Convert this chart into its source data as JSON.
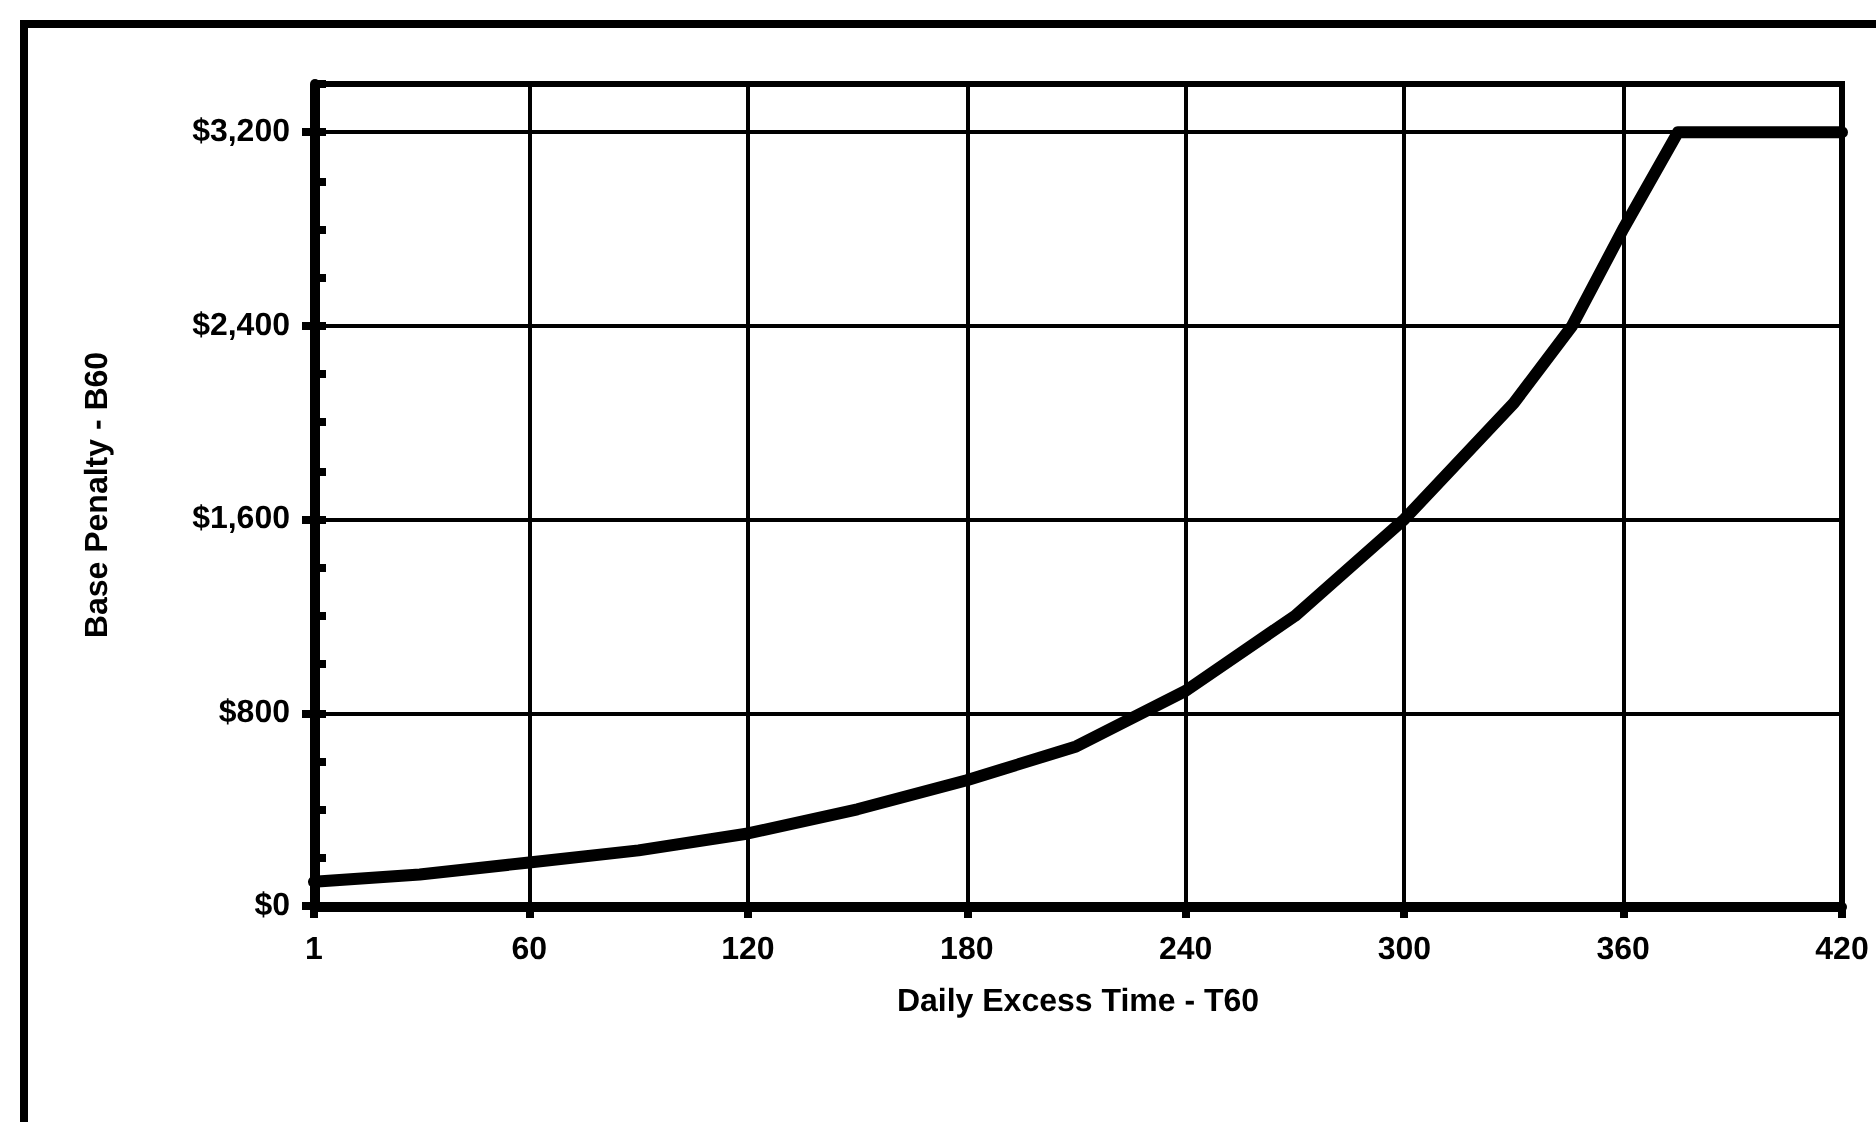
{
  "chart_data": {
    "type": "line",
    "xlabel": "Daily Excess Time - T60",
    "ylabel": "Base Penalty - B60",
    "x": [
      1,
      30,
      60,
      90,
      120,
      150,
      180,
      210,
      240,
      270,
      300,
      330,
      346,
      360,
      375,
      420
    ],
    "series": [
      {
        "color": "#000000",
        "values": [
          100,
          130,
          180,
          230,
          300,
          400,
          520,
          660,
          890,
          1200,
          1600,
          2080,
          2400,
          2800,
          3200,
          3200
        ]
      }
    ],
    "xlim": [
      1,
      420
    ],
    "xticks": [
      1,
      60,
      120,
      180,
      240,
      300,
      360,
      420
    ],
    "ylim": [
      0,
      3400
    ],
    "yticks": [
      {
        "value": 0,
        "label": "$0"
      },
      {
        "value": 200,
        "label": null
      },
      {
        "value": 400,
        "label": null
      },
      {
        "value": 600,
        "label": null
      },
      {
        "value": 800,
        "label": "$800"
      },
      {
        "value": 1000,
        "label": null
      },
      {
        "value": 1200,
        "label": null
      },
      {
        "value": 1400,
        "label": null
      },
      {
        "value": 1600,
        "label": "$1,600"
      },
      {
        "value": 1800,
        "label": null
      },
      {
        "value": 2000,
        "label": null
      },
      {
        "value": 2200,
        "label": null
      },
      {
        "value": 2400,
        "label": "$2,400"
      },
      {
        "value": 2600,
        "label": null
      },
      {
        "value": 2800,
        "label": null
      },
      {
        "value": 3000,
        "label": null
      },
      {
        "value": 3200,
        "label": "$3,200"
      },
      {
        "value": 3400,
        "label": null
      }
    ],
    "grid": true,
    "marker": "none",
    "line_style": "solid"
  }
}
